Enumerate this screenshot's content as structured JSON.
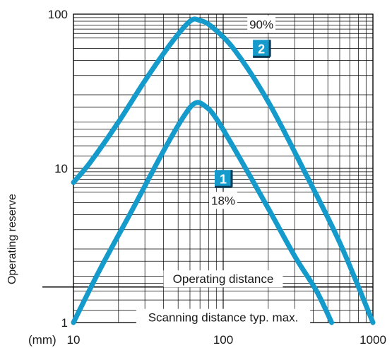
{
  "chart_data": {
    "type": "line",
    "xscale": "log",
    "yscale": "log",
    "xlim": [
      10,
      1000
    ],
    "ylim": [
      1,
      100
    ],
    "x_ticks": [
      {
        "value": 10,
        "label": "10"
      },
      {
        "value": 100,
        "label": "100"
      },
      {
        "value": 1000,
        "label": "1000"
      }
    ],
    "y_ticks": [
      {
        "value": 1,
        "label": "1"
      },
      {
        "value": 10,
        "label": "10"
      },
      {
        "value": 100,
        "label": "100"
      }
    ],
    "xunit": "(mm)",
    "ylabel": "Operating reserve",
    "grid": true,
    "line_color": "#149acb",
    "series": [
      {
        "id": "curve-1",
        "x": [
          10,
          15,
          25,
          40,
          55,
          65,
          75,
          90,
          130,
          200,
          300,
          420,
          530
        ],
        "y": [
          1.0,
          2.2,
          5.5,
          13,
          22,
          26.5,
          25.5,
          21,
          11.5,
          5.5,
          2.7,
          1.6,
          1.0
        ]
      },
      {
        "id": "curve-2",
        "x": [
          10,
          13,
          20,
          30,
          45,
          60,
          70,
          85,
          120,
          200,
          350,
          600,
          1000
        ],
        "y": [
          8.1,
          11,
          20,
          37,
          65,
          90,
          91,
          82,
          58,
          27,
          9.5,
          3.3,
          1.0
        ]
      }
    ],
    "annotations": [
      {
        "id": "label-2",
        "text": "90%",
        "x": 180,
        "y": 86
      },
      {
        "id": "badge-2",
        "text": "2",
        "x": 180,
        "y": 60
      },
      {
        "id": "badge-1",
        "text": "1",
        "x": 100,
        "y": 8.6
      },
      {
        "id": "label-1",
        "text": "18%",
        "x": 100,
        "y": 6.2
      },
      {
        "id": "operating-distance",
        "text": "Operating distance",
        "x": 100,
        "y": 1.92
      },
      {
        "id": "scanning-distance",
        "text": "Scanning distance typ. max.",
        "x": 100,
        "y": 1.08
      }
    ],
    "reference_lines": [
      {
        "id": "operating-distance-line",
        "y": 1.7
      }
    ]
  }
}
